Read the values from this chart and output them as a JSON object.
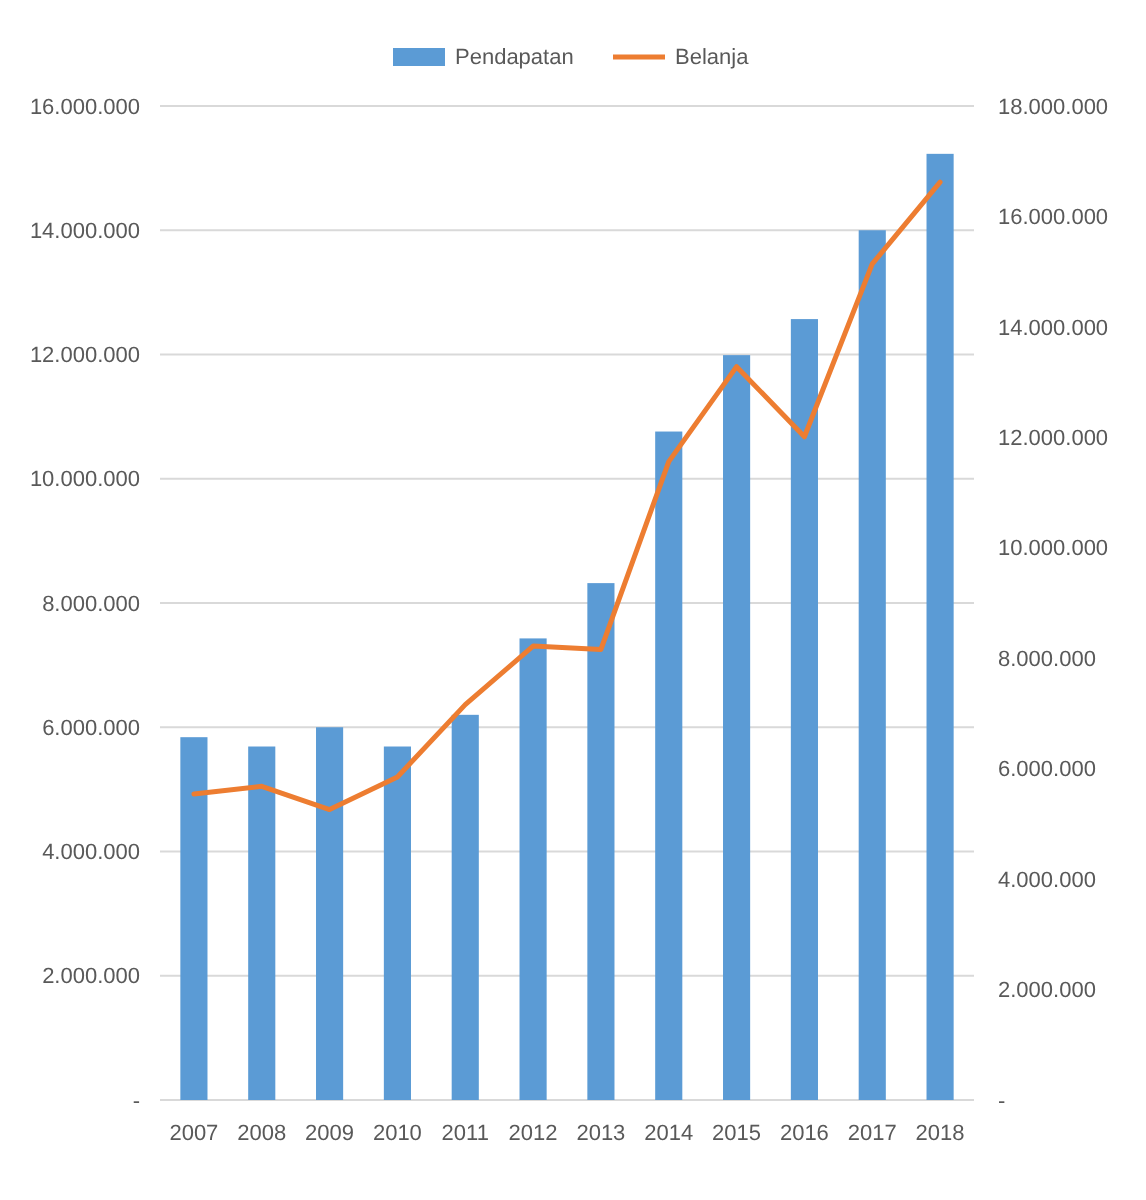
{
  "chart_data": {
    "type": "bar",
    "categories": [
      "2007",
      "2008",
      "2009",
      "2010",
      "2011",
      "2012",
      "2013",
      "2014",
      "2015",
      "2016",
      "2017",
      "2018"
    ],
    "series": [
      {
        "name": "Pendapatan",
        "color": "#5b9bd5",
        "values": [
          5840000,
          5690000,
          6000000,
          5690000,
          6200000,
          7430000,
          8320000,
          10760000,
          11990000,
          12570000,
          14000000,
          15230000
        ]
      },
      {
        "name": "Belanja",
        "type": "line",
        "axis": "y2",
        "color": "#ed7d31",
        "values": [
          5540000,
          5680000,
          5260000,
          5850000,
          7160000,
          8220000,
          8160000,
          11560000,
          13280000,
          12010000,
          15140000,
          16620000
        ]
      }
    ],
    "ylim": [
      0,
      16000000
    ],
    "yticks": [
      {
        "value": 0,
        "label": "-"
      },
      {
        "value": 2000000,
        "label": "2.000.000"
      },
      {
        "value": 4000000,
        "label": "4.000.000"
      },
      {
        "value": 6000000,
        "label": "6.000.000"
      },
      {
        "value": 8000000,
        "label": "8.000.000"
      },
      {
        "value": 10000000,
        "label": "10.000.000"
      },
      {
        "value": 12000000,
        "label": "12.000.000"
      },
      {
        "value": 14000000,
        "label": "14.000.000"
      },
      {
        "value": 16000000,
        "label": "16.000.000"
      }
    ],
    "y2lim": [
      0,
      18000000
    ],
    "y2ticks": [
      {
        "value": 0,
        "label": "-"
      },
      {
        "value": 2000000,
        "label": "2.000.000"
      },
      {
        "value": 4000000,
        "label": "4.000.000"
      },
      {
        "value": 6000000,
        "label": "6.000.000"
      },
      {
        "value": 8000000,
        "label": "8.000.000"
      },
      {
        "value": 10000000,
        "label": "10.000.000"
      },
      {
        "value": 12000000,
        "label": "12.000.000"
      },
      {
        "value": 14000000,
        "label": "14.000.000"
      },
      {
        "value": 16000000,
        "label": "16.000.000"
      },
      {
        "value": 18000000,
        "label": "18.000.000"
      }
    ],
    "grid": "y",
    "legend": "top",
    "marker": "none",
    "line_style": "solid"
  }
}
